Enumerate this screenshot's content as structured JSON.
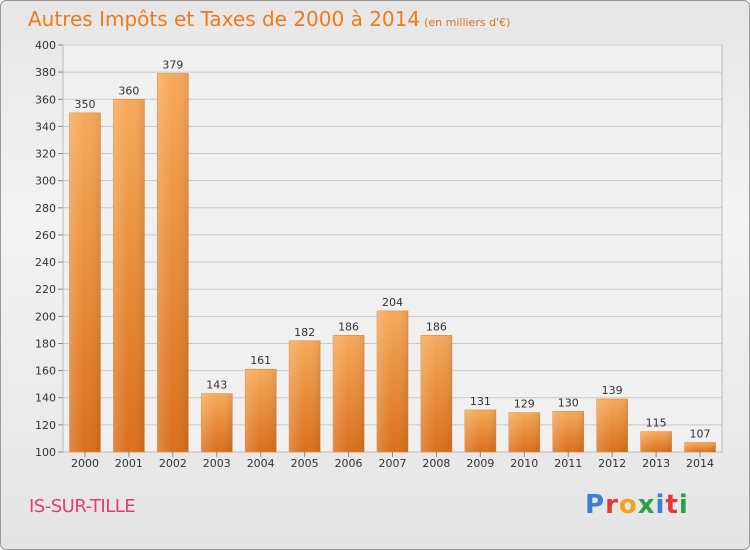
{
  "title": "Autres Impôts et Taxes de 2000 à 2014",
  "subtitle": "(en milliers d'€)",
  "commune": "IS-SUR-TILLE",
  "logo": {
    "text": "Proxiti",
    "colors": [
      "#3a7fd0",
      "#e23a3a",
      "#f2a21b",
      "#2ea04b",
      "#3a7fd0",
      "#e23a3a",
      "#2ea04b"
    ]
  },
  "chart_data": {
    "type": "bar",
    "title": "Autres Impôts et Taxes de 2000 à 2014",
    "subtitle": "(en milliers d'€)",
    "categories": [
      "2000",
      "2001",
      "2002",
      "2003",
      "2004",
      "2005",
      "2006",
      "2007",
      "2008",
      "2009",
      "2010",
      "2011",
      "2012",
      "2013",
      "2014"
    ],
    "values": [
      350,
      360,
      379,
      143,
      161,
      182,
      186,
      204,
      186,
      131,
      129,
      130,
      139,
      115,
      107
    ],
    "ylim": [
      100,
      400
    ],
    "yticks": [
      100,
      120,
      140,
      160,
      180,
      200,
      220,
      240,
      260,
      280,
      300,
      320,
      340,
      360,
      380,
      400
    ],
    "grid": true,
    "bar_color": "#f39a3f"
  }
}
